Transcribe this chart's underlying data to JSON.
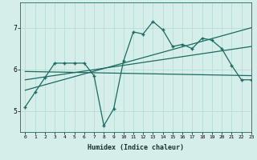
{
  "title": "",
  "xlabel": "Humidex (Indice chaleur)",
  "ylabel": "",
  "background_color": "#d6eeea",
  "grid_color": "#b8ddd8",
  "line_color": "#1a6b60",
  "xlim": [
    -0.5,
    23
  ],
  "ylim": [
    4.5,
    7.6
  ],
  "yticks": [
    5,
    6,
    7
  ],
  "xticks": [
    0,
    1,
    2,
    3,
    4,
    5,
    6,
    7,
    8,
    9,
    10,
    11,
    12,
    13,
    14,
    15,
    16,
    17,
    18,
    19,
    20,
    21,
    22,
    23
  ],
  "series": [
    {
      "x": [
        0,
        1,
        2,
        3,
        4,
        5,
        6,
        7,
        8,
        9,
        10,
        11,
        12,
        13,
        14,
        15,
        16,
        17,
        18,
        19,
        20,
        21,
        22,
        23
      ],
      "y": [
        5.1,
        5.45,
        5.8,
        6.15,
        6.15,
        6.15,
        6.15,
        5.85,
        4.65,
        5.05,
        6.2,
        6.9,
        6.85,
        7.15,
        6.95,
        6.55,
        6.6,
        6.5,
        6.75,
        6.7,
        6.5,
        6.1,
        5.75,
        5.75
      ],
      "marker": true
    },
    {
      "x": [
        0,
        23
      ],
      "y": [
        5.5,
        7.0
      ],
      "marker": false
    },
    {
      "x": [
        0,
        23
      ],
      "y": [
        5.75,
        6.55
      ],
      "marker": false
    },
    {
      "x": [
        0,
        23
      ],
      "y": [
        5.95,
        5.85
      ],
      "marker": false
    }
  ]
}
